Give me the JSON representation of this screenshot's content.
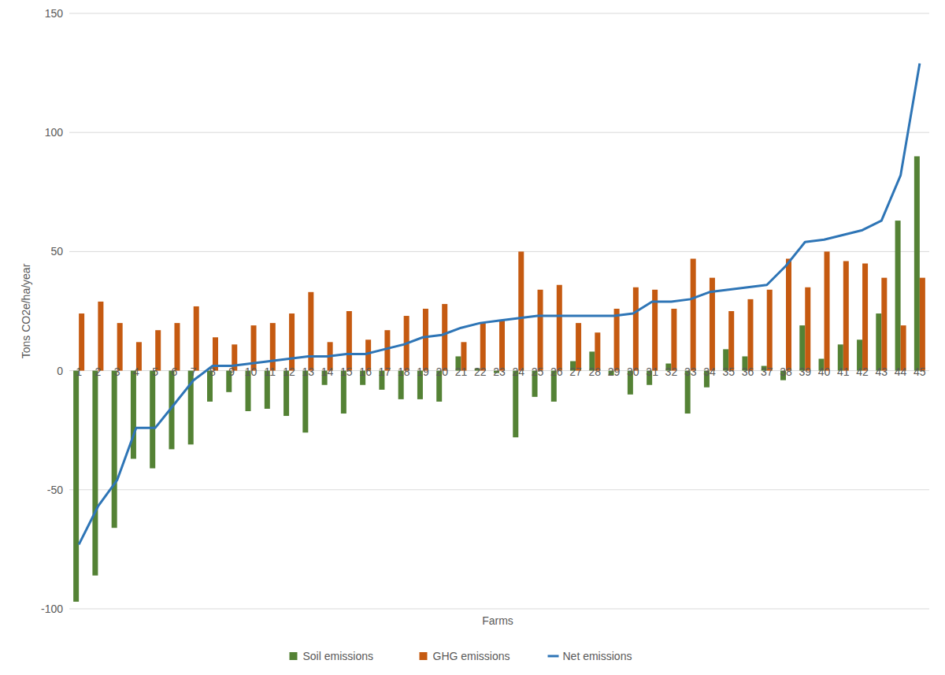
{
  "chart_data": {
    "type": "bar",
    "x_label": "Farms",
    "y_label": "Tons CO2e/ha/year",
    "categories": [
      "1",
      "2",
      "3",
      "4",
      "5",
      "6",
      "7",
      "8",
      "9",
      "10",
      "11",
      "12",
      "13",
      "14",
      "15",
      "16",
      "17",
      "18",
      "19",
      "20",
      "21",
      "22",
      "23",
      "24",
      "25",
      "26",
      "27",
      "28",
      "29",
      "30",
      "31",
      "32",
      "33",
      "34",
      "35",
      "36",
      "37",
      "38",
      "39",
      "40",
      "41",
      "42",
      "43",
      "44",
      "45"
    ],
    "series": [
      {
        "name": "Soil emissions",
        "type": "bar",
        "color": "#548235",
        "values": [
          -97,
          -86,
          -66,
          -37,
          -41,
          -33,
          -31,
          -13,
          -9,
          -17,
          -16,
          -19,
          -26,
          -6,
          -18,
          -6,
          -8,
          -12,
          -12,
          -13,
          6,
          1,
          -1,
          -28,
          -11,
          -13,
          4,
          8,
          -2,
          -10,
          -6,
          3,
          -18,
          -7,
          9,
          6,
          2,
          -4,
          19,
          5,
          11,
          13,
          24,
          63,
          90
        ]
      },
      {
        "name": "GHG emissions",
        "type": "bar",
        "color": "#c55a11",
        "values": [
          24,
          29,
          20,
          12,
          17,
          20,
          27,
          14,
          11,
          19,
          20,
          24,
          33,
          12,
          25,
          13,
          17,
          23,
          26,
          28,
          12,
          20,
          21,
          50,
          34,
          36,
          20,
          16,
          26,
          35,
          34,
          26,
          47,
          39,
          25,
          30,
          34,
          47,
          35,
          50,
          46,
          45,
          39,
          19,
          39
        ]
      },
      {
        "name": "Net emissions",
        "type": "line",
        "color": "#2e75b6",
        "values": [
          -73,
          -57,
          -46,
          -24,
          -24,
          -14,
          -4,
          2,
          2,
          3,
          4,
          5,
          6,
          6,
          7,
          7,
          9,
          11,
          14,
          15,
          18,
          20,
          21,
          22,
          23,
          23,
          23,
          23,
          23,
          24,
          29,
          29,
          30,
          33,
          34,
          35,
          36,
          44,
          54,
          55,
          57,
          59,
          63,
          82,
          129
        ]
      }
    ],
    "ylim": [
      -100,
      150
    ],
    "yticks": [
      -100,
      -50,
      0,
      50,
      100,
      150
    ],
    "grid": true,
    "legend": "bottom"
  }
}
